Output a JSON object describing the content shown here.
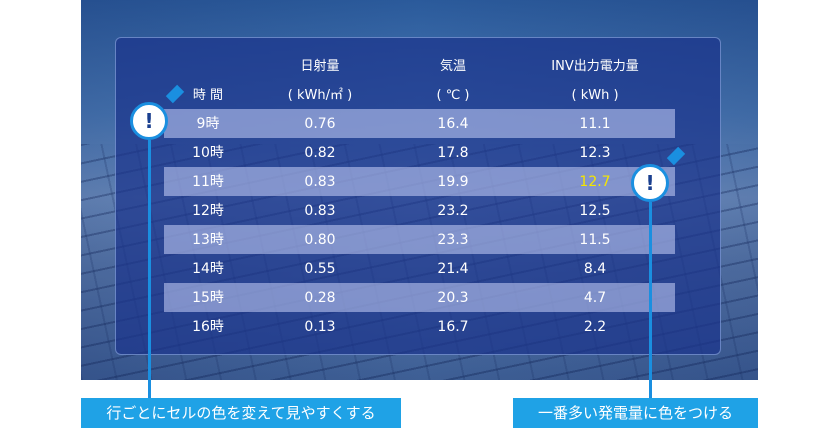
{
  "table": {
    "headers": {
      "time": "時 間",
      "irradiance": "日射量",
      "irradiance_unit": "( kWh/㎡ )",
      "temperature": "気温",
      "temperature_unit": "( ℃ )",
      "inv": "INV出力電力量",
      "inv_unit": "( kWh )"
    },
    "rows": [
      {
        "time": "9時",
        "irr": "0.76",
        "temp": "16.4",
        "inv": "11.1"
      },
      {
        "time": "10時",
        "irr": "0.82",
        "temp": "17.8",
        "inv": "12.3"
      },
      {
        "time": "11時",
        "irr": "0.83",
        "temp": "19.9",
        "inv": "12.7"
      },
      {
        "time": "12時",
        "irr": "0.83",
        "temp": "23.2",
        "inv": "12.5"
      },
      {
        "time": "13時",
        "irr": "0.80",
        "temp": "23.3",
        "inv": "11.5"
      },
      {
        "time": "14時",
        "irr": "0.55",
        "temp": "21.4",
        "inv": "8.4"
      },
      {
        "time": "15時",
        "irr": "0.28",
        "temp": "20.3",
        "inv": "4.7"
      },
      {
        "time": "16時",
        "irr": "0.13",
        "temp": "16.7",
        "inv": "2.2"
      }
    ],
    "highlight_color": "#f5e600",
    "band_color": "#c8d2fa"
  },
  "markers": {
    "symbol": "!",
    "color": "#1a8fe0"
  },
  "callouts": {
    "left": "行ごとにセルの色を変えて見やすくする",
    "right": "一番多い発電量に色をつける"
  }
}
